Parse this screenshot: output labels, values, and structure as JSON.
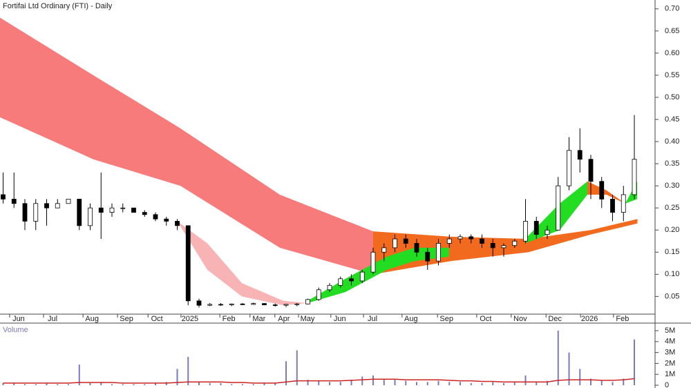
{
  "chart_data": {
    "type": "candlestick",
    "title": "Fortifai Ltd Ordinary (FTI) - Daily",
    "xlim": [
      0,
      210
    ],
    "xticks": [
      {
        "value": 3.1,
        "label": "Jun"
      },
      {
        "value": 14,
        "label": "Jul"
      },
      {
        "value": 26.7,
        "label": "Aug"
      },
      {
        "value": 37.8,
        "label": "Sep"
      },
      {
        "value": 47.6,
        "label": "Oct"
      },
      {
        "value": 58.2,
        "label": "2025"
      },
      {
        "value": 70.7,
        "label": "Feb"
      },
      {
        "value": 80.4,
        "label": "Mar"
      },
      {
        "value": 88.4,
        "label": "Apr"
      },
      {
        "value": 96,
        "label": "May"
      },
      {
        "value": 106.4,
        "label": "Jun"
      },
      {
        "value": 116.9,
        "label": "Jul"
      },
      {
        "value": 129.3,
        "label": "Aug"
      },
      {
        "value": 140.7,
        "label": "Sep"
      },
      {
        "value": 153.3,
        "label": "Oct"
      },
      {
        "value": 164.4,
        "label": "Nov"
      },
      {
        "value": 175.6,
        "label": "Dec"
      },
      {
        "value": 186.7,
        "label": "2026"
      },
      {
        "value": 197.3,
        "label": "Feb"
      }
    ],
    "ylim": [
      0.01,
      0.72
    ],
    "yticks": [
      {
        "value": 0.05,
        "label": "0.05"
      },
      {
        "value": 0.1,
        "label": "0.10"
      },
      {
        "value": 0.15,
        "label": "0.15"
      },
      {
        "value": 0.2,
        "label": "0.20"
      },
      {
        "value": 0.25,
        "label": "0.25"
      },
      {
        "value": 0.3,
        "label": "0.30"
      },
      {
        "value": 0.35,
        "label": "0.35"
      },
      {
        "value": 0.4,
        "label": "0.40"
      },
      {
        "value": 0.45,
        "label": "0.45"
      },
      {
        "value": 0.5,
        "label": "0.50"
      },
      {
        "value": 0.55,
        "label": "0.55"
      },
      {
        "value": 0.6,
        "label": "0.60"
      },
      {
        "value": 0.65,
        "label": "0.65"
      },
      {
        "value": 0.7,
        "label": "0.70"
      }
    ],
    "candles": {
      "x": [
        1,
        4.5,
        8,
        11.5,
        15,
        18.5,
        22,
        25.5,
        29,
        32.5,
        36,
        39.5,
        43,
        46.5,
        50,
        53.5,
        57,
        60.5,
        64,
        67.5,
        71,
        74.5,
        78,
        81.5,
        85,
        88.5,
        92,
        95.5,
        99,
        102.5,
        106,
        109.5,
        113,
        116.5,
        120,
        123.5,
        127,
        130.5,
        134,
        137.5,
        141,
        144.5,
        148,
        151.5,
        155,
        158.5,
        162,
        165.5,
        169,
        172.5,
        176,
        179.5,
        183,
        186.5,
        190,
        193.5,
        197,
        200.5,
        204
      ],
      "open": [
        0.28,
        0.27,
        0.26,
        0.22,
        0.26,
        0.25,
        0.26,
        0.27,
        0.21,
        0.25,
        0.24,
        0.25,
        0.25,
        0.24,
        0.235,
        0.225,
        0.22,
        0.21,
        0.04,
        0.03,
        0.032,
        0.031,
        0.033,
        0.032,
        0.034,
        0.031,
        0.03,
        0.032,
        0.033,
        0.043,
        0.065,
        0.075,
        0.09,
        0.085,
        0.105,
        0.15,
        0.16,
        0.18,
        0.17,
        0.15,
        0.13,
        0.17,
        0.18,
        0.185,
        0.18,
        0.17,
        0.16,
        0.165,
        0.175,
        0.22,
        0.19,
        0.2,
        0.3,
        0.38,
        0.36,
        0.31,
        0.27,
        0.24,
        0.28
      ],
      "high": [
        0.33,
        0.33,
        0.27,
        0.27,
        0.27,
        0.27,
        0.27,
        0.27,
        0.26,
        0.33,
        0.26,
        0.26,
        0.25,
        0.245,
        0.24,
        0.23,
        0.225,
        0.21,
        0.045,
        0.035,
        0.035,
        0.034,
        0.035,
        0.036,
        0.035,
        0.034,
        0.033,
        0.035,
        0.045,
        0.07,
        0.08,
        0.095,
        0.1,
        0.11,
        0.16,
        0.17,
        0.19,
        0.19,
        0.18,
        0.16,
        0.18,
        0.19,
        0.19,
        0.19,
        0.19,
        0.18,
        0.17,
        0.18,
        0.27,
        0.23,
        0.21,
        0.32,
        0.41,
        0.43,
        0.37,
        0.32,
        0.28,
        0.3,
        0.46
      ],
      "low": [
        0.26,
        0.25,
        0.2,
        0.2,
        0.21,
        0.25,
        0.26,
        0.2,
        0.2,
        0.18,
        0.23,
        0.24,
        0.24,
        0.23,
        0.22,
        0.21,
        0.2,
        0.03,
        0.025,
        0.028,
        0.029,
        0.028,
        0.03,
        0.031,
        0.03,
        0.027,
        0.026,
        0.028,
        0.032,
        0.04,
        0.06,
        0.07,
        0.075,
        0.08,
        0.1,
        0.13,
        0.15,
        0.16,
        0.14,
        0.11,
        0.12,
        0.16,
        0.17,
        0.17,
        0.16,
        0.14,
        0.14,
        0.16,
        0.17,
        0.18,
        0.18,
        0.2,
        0.29,
        0.33,
        0.27,
        0.25,
        0.22,
        0.22,
        0.27
      ],
      "close": [
        0.27,
        0.26,
        0.22,
        0.26,
        0.25,
        0.26,
        0.27,
        0.21,
        0.25,
        0.24,
        0.25,
        0.25,
        0.24,
        0.235,
        0.225,
        0.22,
        0.21,
        0.04,
        0.03,
        0.032,
        0.031,
        0.033,
        0.032,
        0.034,
        0.031,
        0.03,
        0.032,
        0.033,
        0.043,
        0.065,
        0.075,
        0.09,
        0.085,
        0.105,
        0.15,
        0.16,
        0.18,
        0.17,
        0.15,
        0.13,
        0.17,
        0.18,
        0.185,
        0.18,
        0.17,
        0.16,
        0.165,
        0.175,
        0.22,
        0.19,
        0.2,
        0.3,
        0.38,
        0.36,
        0.31,
        0.27,
        0.24,
        0.28,
        0.36
      ]
    },
    "bands": [
      {
        "color": "#f77b7b",
        "x": [
          0,
          30,
          58,
          90,
          120
        ],
        "upper": [
          0.68,
          0.55,
          0.43,
          0.28,
          0.197
        ],
        "lower": [
          0.455,
          0.36,
          0.3,
          0.16,
          0.1
        ]
      },
      {
        "color": "#f26a1e",
        "x": [
          120,
          145,
          170,
          190,
          205
        ],
        "upper": [
          0.197,
          0.185,
          0.18,
          0.2,
          0.225
        ],
        "lower": [
          0.1,
          0.13,
          0.15,
          0.19,
          0.215
        ]
      },
      {
        "color": "#f8b4b4",
        "x": [
          57,
          66.7,
          77.8,
          91.1,
          98.9
        ],
        "upper": [
          0.22,
          0.17,
          0.08,
          0.04,
          0.035
        ],
        "lower": [
          0.22,
          0.11,
          0.05,
          0.03,
          0.035
        ]
      },
      {
        "color": "#22dd22",
        "x": [
          98.9,
          111.1,
          124.4,
          133.3,
          144.4
        ],
        "upper": [
          0.04,
          0.09,
          0.14,
          0.16,
          0.16
        ],
        "lower": [
          0.035,
          0.06,
          0.11,
          0.13,
          0.14
        ]
      },
      {
        "color": "#f26a1e",
        "x": [
          144.4,
          155.6,
          168.9
        ],
        "upper": [
          0.16,
          0.175,
          0.18
        ],
        "lower": [
          0.14,
          0.15,
          0.17
        ]
      },
      {
        "color": "#22dd22",
        "x": [
          168.9,
          180,
          188.9
        ],
        "upper": [
          0.18,
          0.26,
          0.31
        ],
        "lower": [
          0.17,
          0.2,
          0.28
        ]
      },
      {
        "color": "#f26a1e",
        "x": [
          188.9,
          195,
          201.1
        ],
        "upper": [
          0.31,
          0.29,
          0.26
        ],
        "lower": [
          0.28,
          0.28,
          0.26
        ]
      },
      {
        "color": "#22dd22",
        "x": [
          201.1,
          204.9
        ],
        "upper": [
          0.26,
          0.31
        ],
        "lower": [
          0.26,
          0.27
        ]
      }
    ],
    "volume": {
      "label": "Volume",
      "color": "#7a7ac0",
      "values": [
        0.2,
        0.15,
        0.1,
        0.1,
        0.15,
        0.1,
        0.1,
        1.9,
        0.2,
        0.3,
        0.1,
        0.1,
        0.1,
        0.1,
        0.2,
        0.3,
        1.5,
        2.6,
        0.3,
        0.2,
        0.2,
        0.1,
        0.1,
        0.1,
        0.2,
        0.2,
        2.2,
        3.2,
        0.5,
        0.4,
        0.3,
        0.3,
        0.5,
        0.8,
        0.9,
        0.6,
        0.5,
        0.4,
        0.3,
        0.3,
        0.4,
        0.3,
        0.3,
        0.2,
        0.2,
        0.3,
        0.2,
        0.3,
        0.9,
        0.3,
        0.4,
        5.0,
        3.0,
        1.5,
        0.6,
        0.4,
        0.3,
        0.6,
        4.2
      ],
      "avg_color": "#cc2222",
      "avg": [
        0.2,
        0.2,
        0.2,
        0.2,
        0.2,
        0.2,
        0.2,
        0.25,
        0.25,
        0.25,
        0.25,
        0.2,
        0.2,
        0.2,
        0.2,
        0.2,
        0.25,
        0.3,
        0.3,
        0.3,
        0.3,
        0.25,
        0.25,
        0.2,
        0.2,
        0.2,
        0.3,
        0.4,
        0.4,
        0.4,
        0.4,
        0.4,
        0.45,
        0.5,
        0.55,
        0.55,
        0.55,
        0.5,
        0.5,
        0.5,
        0.5,
        0.45,
        0.4,
        0.4,
        0.35,
        0.35,
        0.3,
        0.3,
        0.3,
        0.3,
        0.3,
        0.45,
        0.5,
        0.5,
        0.5,
        0.45,
        0.45,
        0.5,
        0.6
      ],
      "ylim": [
        0,
        5.57
      ],
      "yticks": [
        0,
        {
          "value": 1,
          "label": "1M"
        },
        {
          "value": 2,
          "label": "2M"
        },
        {
          "value": 3,
          "label": "3M"
        },
        {
          "value": 4,
          "label": "4M"
        },
        {
          "value": 5,
          "label": "5M"
        }
      ]
    }
  }
}
